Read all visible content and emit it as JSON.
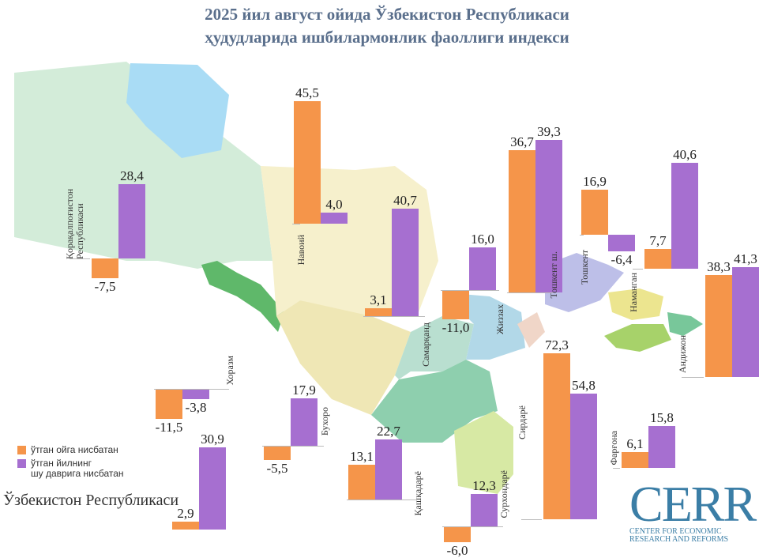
{
  "title_line1": "2025 йил август ойида Ўзбекистон Республикаси",
  "title_line2": "ҳудудларида ишбилармонлик фаоллиги индекси",
  "legend": {
    "series1": "ўтган ойга нисбатан",
    "series2_line1": "ўтган йилнинг",
    "series2_line2": "шу даврига нисбатан"
  },
  "country_label": "Ўзбекистон Республикаси",
  "logo": {
    "name": "CERR",
    "line1": "CENTER FOR ECONOMIC",
    "line2": "RESEARCH AND REFORMS"
  },
  "colors": {
    "series1": "#f5954a",
    "series2": "#a66fd0",
    "title": "#5a6f8c",
    "logo": "#3b7ea6"
  },
  "chart_data": {
    "type": "bar",
    "title": "2025 йил август ойида Ўзбекистон Республикаси ҳудудларида ишбилармонлик фаоллиги индекси",
    "series": [
      {
        "name": "ўтган ойга нисбатан",
        "color": "#f5954a"
      },
      {
        "name": "ўтган йилнинг шу даврига нисбатан",
        "color": "#a66fd0"
      }
    ],
    "regions": [
      {
        "name": "Қорақалпоғистон Республикаси",
        "values": [
          "-7,5",
          "28,4"
        ]
      },
      {
        "name": "Навоий",
        "values": [
          "45,5",
          "4,0"
        ]
      },
      {
        "name": "Самарқанд",
        "values": [
          "3,1",
          "40,7"
        ]
      },
      {
        "name": "Жиззах",
        "values": [
          "-11,0",
          "16,0"
        ]
      },
      {
        "name": "Тошкент ш.",
        "values": [
          "36,7",
          "39,3"
        ]
      },
      {
        "name": "Тошкент",
        "values": [
          "16,9",
          "-6,4"
        ]
      },
      {
        "name": "Наманган",
        "values": [
          "7,7",
          "40,6"
        ]
      },
      {
        "name": "Андижон",
        "values": [
          "38,3",
          "41,3"
        ]
      },
      {
        "name": "Хоразм",
        "values": [
          "-11,5",
          "-3,8"
        ]
      },
      {
        "name": "Бухоро",
        "values": [
          "-5,5",
          "17,9"
        ]
      },
      {
        "name": "Қашқадарё",
        "values": [
          "13,1",
          "22,7"
        ]
      },
      {
        "name": "Сурхондарё",
        "values": [
          "-6,0",
          "12,3"
        ]
      },
      {
        "name": "Сирдарё",
        "values": [
          "72,3",
          "54,8"
        ]
      },
      {
        "name": "Фарғона",
        "values": [
          "6,1",
          "15,8"
        ]
      },
      {
        "name": "Ўзбекистон Республикаси",
        "values": [
          "2,9",
          "30,9"
        ]
      }
    ]
  }
}
